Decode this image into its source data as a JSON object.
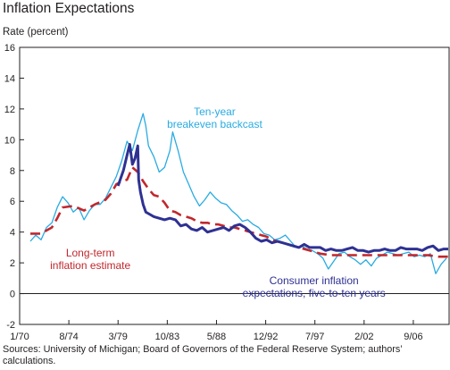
{
  "chart_data": {
    "type": "line",
    "title": "Inflation Expectations",
    "ylabel": "Rate (percent)",
    "xlabel": "",
    "ylim": [
      -2,
      16
    ],
    "y_ticks": [
      -2,
      0,
      2,
      4,
      6,
      8,
      10,
      12,
      14,
      16
    ],
    "x_range": [
      "1970-01",
      "2009-12"
    ],
    "x_ticks": [
      {
        "label": "1/70",
        "date": "1970-01"
      },
      {
        "label": "8/74",
        "date": "1974-08"
      },
      {
        "label": "3/79",
        "date": "1979-03"
      },
      {
        "label": "10/83",
        "date": "1983-10"
      },
      {
        "label": "5/88",
        "date": "1988-05"
      },
      {
        "label": "12/92",
        "date": "1992-12"
      },
      {
        "label": "7/97",
        "date": "1997-07"
      },
      {
        "label": "2/02",
        "date": "2002-02"
      },
      {
        "label": "9/06",
        "date": "2006-09"
      }
    ],
    "grid": false,
    "series": [
      {
        "name": "Ten-year breakeven backcast",
        "color": "#29abe2",
        "dash": "solid",
        "points": [
          [
            "1971-01",
            3.4
          ],
          [
            "1971-07",
            3.8
          ],
          [
            "1972-01",
            3.5
          ],
          [
            "1972-07",
            4.3
          ],
          [
            "1973-01",
            4.6
          ],
          [
            "1973-07",
            5.6
          ],
          [
            "1974-01",
            6.3
          ],
          [
            "1974-07",
            5.9
          ],
          [
            "1975-01",
            5.3
          ],
          [
            "1975-07",
            5.6
          ],
          [
            "1976-01",
            4.8
          ],
          [
            "1976-07",
            5.4
          ],
          [
            "1977-01",
            5.8
          ],
          [
            "1977-07",
            5.8
          ],
          [
            "1978-01",
            6.2
          ],
          [
            "1978-07",
            6.9
          ],
          [
            "1979-01",
            7.6
          ],
          [
            "1979-07",
            8.6
          ],
          [
            "1980-01",
            9.9
          ],
          [
            "1980-07",
            9.3
          ],
          [
            "1981-01",
            10.6
          ],
          [
            "1981-07",
            11.7
          ],
          [
            "1981-10",
            10.9
          ],
          [
            "1982-01",
            9.6
          ],
          [
            "1982-07",
            8.9
          ],
          [
            "1983-01",
            7.9
          ],
          [
            "1983-07",
            8.2
          ],
          [
            "1984-01",
            9.3
          ],
          [
            "1984-04",
            10.5
          ],
          [
            "1984-10",
            9.3
          ],
          [
            "1985-04",
            7.9
          ],
          [
            "1985-10",
            7.1
          ],
          [
            "1986-04",
            6.3
          ],
          [
            "1986-10",
            5.7
          ],
          [
            "1987-04",
            6.1
          ],
          [
            "1987-10",
            6.6
          ],
          [
            "1988-04",
            6.2
          ],
          [
            "1988-10",
            5.9
          ],
          [
            "1989-04",
            5.8
          ],
          [
            "1989-10",
            5.4
          ],
          [
            "1990-04",
            5.1
          ],
          [
            "1990-10",
            4.7
          ],
          [
            "1991-04",
            4.8
          ],
          [
            "1991-10",
            4.5
          ],
          [
            "1992-04",
            4.3
          ],
          [
            "1992-10",
            3.9
          ],
          [
            "1993-04",
            3.8
          ],
          [
            "1993-10",
            3.5
          ],
          [
            "1994-04",
            3.6
          ],
          [
            "1994-10",
            3.8
          ],
          [
            "1995-04",
            3.4
          ],
          [
            "1995-10",
            3.0
          ],
          [
            "1996-04",
            3.1
          ],
          [
            "1996-10",
            2.9
          ],
          [
            "1997-04",
            2.8
          ],
          [
            "1997-10",
            2.6
          ],
          [
            "1998-04",
            2.3
          ],
          [
            "1998-10",
            1.6
          ],
          [
            "1999-04",
            2.1
          ],
          [
            "1999-10",
            2.6
          ],
          [
            "2000-04",
            2.7
          ],
          [
            "2000-10",
            2.4
          ],
          [
            "2001-04",
            2.2
          ],
          [
            "2001-10",
            1.9
          ],
          [
            "2002-04",
            2.2
          ],
          [
            "2002-10",
            1.8
          ],
          [
            "2003-04",
            2.3
          ],
          [
            "2003-10",
            2.5
          ],
          [
            "2004-04",
            2.7
          ],
          [
            "2004-10",
            2.6
          ],
          [
            "2005-04",
            2.5
          ],
          [
            "2005-10",
            2.6
          ],
          [
            "2006-04",
            2.7
          ],
          [
            "2006-10",
            2.4
          ],
          [
            "2007-04",
            2.5
          ],
          [
            "2007-10",
            2.4
          ],
          [
            "2008-04",
            2.6
          ],
          [
            "2008-10",
            1.3
          ],
          [
            "2009-04",
            1.9
          ],
          [
            "2009-10",
            2.3
          ]
        ]
      },
      {
        "name": "Long-term inflation estimate",
        "color": "#c1272d",
        "dash": "dashed",
        "points": [
          [
            "1971-01",
            3.9
          ],
          [
            "1972-01",
            3.9
          ],
          [
            "1973-01",
            4.3
          ],
          [
            "1973-07",
            4.9
          ],
          [
            "1974-01",
            5.6
          ],
          [
            "1975-01",
            5.7
          ],
          [
            "1976-01",
            5.4
          ],
          [
            "1977-01",
            5.8
          ],
          [
            "1978-01",
            6.1
          ],
          [
            "1978-07",
            6.5
          ],
          [
            "1979-01",
            7.1
          ],
          [
            "1979-07",
            7.3
          ],
          [
            "1980-01",
            7.4
          ],
          [
            "1980-07",
            8.2
          ],
          [
            "1981-01",
            7.9
          ],
          [
            "1981-07",
            7.3
          ],
          [
            "1982-01",
            6.8
          ],
          [
            "1982-07",
            6.4
          ],
          [
            "1983-01",
            6.3
          ],
          [
            "1983-07",
            5.9
          ],
          [
            "1984-01",
            5.4
          ],
          [
            "1984-07",
            5.3
          ],
          [
            "1985-01",
            5.1
          ],
          [
            "1985-07",
            5.0
          ],
          [
            "1986-01",
            4.9
          ],
          [
            "1986-07",
            4.7
          ],
          [
            "1987-01",
            4.6
          ],
          [
            "1987-07",
            4.6
          ],
          [
            "1988-01",
            4.5
          ],
          [
            "1988-07",
            4.5
          ],
          [
            "1989-01",
            4.4
          ],
          [
            "1989-07",
            4.3
          ],
          [
            "1990-01",
            4.3
          ],
          [
            "1990-07",
            4.2
          ],
          [
            "1991-01",
            4.1
          ],
          [
            "1991-07",
            4.0
          ],
          [
            "1992-01",
            3.9
          ],
          [
            "1992-07",
            3.8
          ],
          [
            "1993-01",
            3.7
          ],
          [
            "1993-07",
            3.5
          ],
          [
            "1994-01",
            3.4
          ],
          [
            "1994-07",
            3.3
          ],
          [
            "1995-01",
            3.2
          ],
          [
            "1995-07",
            3.1
          ],
          [
            "1996-01",
            3.0
          ],
          [
            "1996-07",
            2.9
          ],
          [
            "1997-01",
            2.8
          ],
          [
            "1998-01",
            2.6
          ],
          [
            "1999-01",
            2.5
          ],
          [
            "2000-01",
            2.5
          ],
          [
            "2001-01",
            2.5
          ],
          [
            "2002-01",
            2.5
          ],
          [
            "2003-01",
            2.5
          ],
          [
            "2004-01",
            2.5
          ],
          [
            "2005-01",
            2.5
          ],
          [
            "2006-01",
            2.5
          ],
          [
            "2007-01",
            2.5
          ],
          [
            "2008-01",
            2.5
          ],
          [
            "2009-01",
            2.4
          ],
          [
            "2009-12",
            2.4
          ]
        ]
      },
      {
        "name": "Consumer inflation expectations, five-to-ten years",
        "color": "#2e3192",
        "dash": "solid",
        "points": [
          [
            "1979-03",
            7.0
          ],
          [
            "1979-09",
            8.0
          ],
          [
            "1980-01",
            9.0
          ],
          [
            "1980-04",
            9.7
          ],
          [
            "1980-07",
            8.4
          ],
          [
            "1980-10",
            8.8
          ],
          [
            "1981-01",
            9.6
          ],
          [
            "1981-02",
            7.4
          ],
          [
            "1981-04",
            6.6
          ],
          [
            "1981-07",
            5.8
          ],
          [
            "1981-10",
            5.3
          ],
          [
            "1982-01",
            5.2
          ],
          [
            "1982-07",
            5.0
          ],
          [
            "1983-01",
            4.9
          ],
          [
            "1983-07",
            4.8
          ],
          [
            "1984-01",
            4.9
          ],
          [
            "1984-07",
            4.8
          ],
          [
            "1985-01",
            4.4
          ],
          [
            "1985-07",
            4.5
          ],
          [
            "1986-01",
            4.2
          ],
          [
            "1986-07",
            4.1
          ],
          [
            "1987-01",
            4.3
          ],
          [
            "1987-07",
            4.0
          ],
          [
            "1988-01",
            4.1
          ],
          [
            "1988-07",
            4.2
          ],
          [
            "1989-01",
            4.3
          ],
          [
            "1989-07",
            4.1
          ],
          [
            "1990-01",
            4.4
          ],
          [
            "1990-07",
            4.5
          ],
          [
            "1991-01",
            4.3
          ],
          [
            "1991-07",
            4.0
          ],
          [
            "1992-01",
            3.6
          ],
          [
            "1992-07",
            3.4
          ],
          [
            "1993-01",
            3.5
          ],
          [
            "1993-07",
            3.3
          ],
          [
            "1994-01",
            3.4
          ],
          [
            "1994-07",
            3.3
          ],
          [
            "1995-01",
            3.2
          ],
          [
            "1995-07",
            3.1
          ],
          [
            "1996-01",
            3.0
          ],
          [
            "1996-07",
            3.2
          ],
          [
            "1997-01",
            3.0
          ],
          [
            "1997-07",
            3.0
          ],
          [
            "1998-01",
            3.0
          ],
          [
            "1998-07",
            2.8
          ],
          [
            "1999-01",
            2.9
          ],
          [
            "1999-07",
            2.8
          ],
          [
            "2000-01",
            2.8
          ],
          [
            "2000-07",
            2.9
          ],
          [
            "2001-01",
            3.0
          ],
          [
            "2001-07",
            2.8
          ],
          [
            "2002-01",
            2.8
          ],
          [
            "2002-07",
            2.7
          ],
          [
            "2003-01",
            2.8
          ],
          [
            "2003-07",
            2.8
          ],
          [
            "2004-01",
            2.9
          ],
          [
            "2004-07",
            2.8
          ],
          [
            "2005-01",
            2.8
          ],
          [
            "2005-07",
            3.0
          ],
          [
            "2006-01",
            2.9
          ],
          [
            "2006-07",
            2.9
          ],
          [
            "2007-01",
            2.9
          ],
          [
            "2007-07",
            2.8
          ],
          [
            "2008-01",
            3.0
          ],
          [
            "2008-07",
            3.1
          ],
          [
            "2009-01",
            2.8
          ],
          [
            "2009-07",
            2.9
          ],
          [
            "2009-12",
            2.9
          ]
        ]
      }
    ],
    "annotations": [
      {
        "lines": [
          "Ten-year",
          "breakeven backcast"
        ],
        "color": "#29abe2",
        "at": [
          "1988-03",
          11.6
        ]
      },
      {
        "lines": [
          "Long-term",
          "inflation estimate"
        ],
        "color": "#c1272d",
        "at": [
          "1976-08",
          2.4
        ]
      },
      {
        "lines": [
          "Consumer inflation",
          "expectations, five-to-ten years"
        ],
        "color": "#2e3192",
        "at": [
          "1997-06",
          0.6
        ]
      }
    ],
    "sources": "Sources: University of Michigan; Board of Governors of the Federal Reserve System; authors’ calculations."
  }
}
